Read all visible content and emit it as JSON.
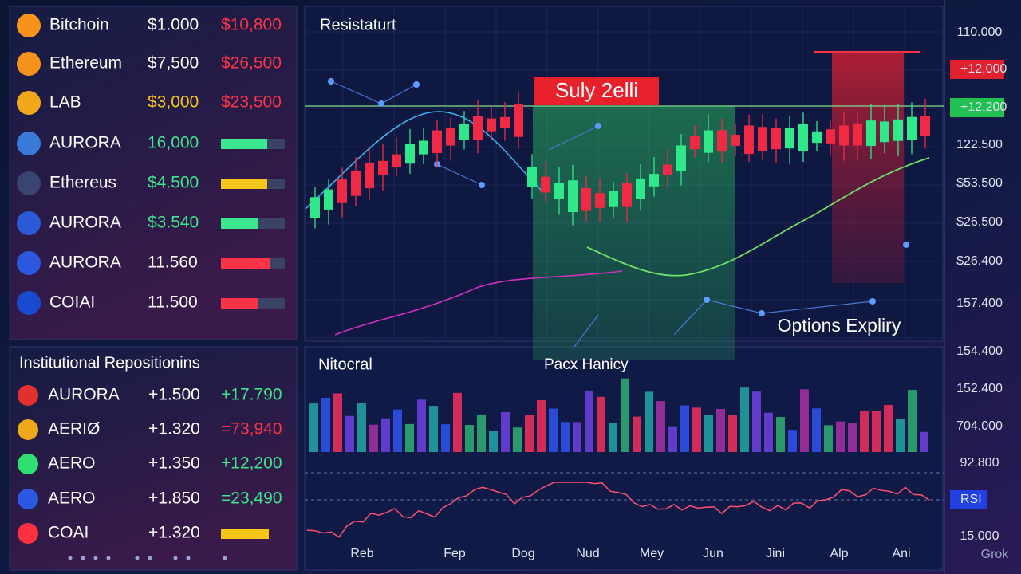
{
  "assets": [
    {
      "name": "Bitchoin",
      "price": "$1.000",
      "change": "$10,800"
    },
    {
      "name": "Ethereum",
      "price": "$7,500",
      "change": "$26,500"
    },
    {
      "name": "LAB",
      "price": "$3,000",
      "change": "$23,500"
    },
    {
      "name": "AURORA",
      "price": "16,000"
    },
    {
      "name": "Ethereus",
      "price": "$4.500"
    },
    {
      "name": "AURORA",
      "price": "$3.540"
    },
    {
      "name": "AURORA",
      "price": "11.560"
    },
    {
      "name": "COIAI",
      "price": "11.500"
    }
  ],
  "institutional": {
    "title": "Institutional Repositionins",
    "rows": [
      {
        "name": "AURORA",
        "amount": "+1.500",
        "change": "+17.790"
      },
      {
        "name": "AERIØ",
        "amount": "+1.320",
        "change": "=73,940"
      },
      {
        "name": "AERO",
        "amount": "+1.350",
        "change": "+12,200"
      },
      {
        "name": "AERO",
        "amount": "+1.850",
        "change": "=23,490"
      },
      {
        "name": "COAI",
        "amount": "+1.320"
      }
    ]
  },
  "main_chart": {
    "title": "Resistaturt",
    "zone_label": "Suly 2elli",
    "annotation": "Options Expliry"
  },
  "volume_panel": {
    "title": "Nitocral",
    "subtitle": "Pacx Hanicy"
  },
  "right_axis": [
    "110.000",
    "+12,000",
    "+12,200",
    "122.500",
    "$53.500",
    "$26.500",
    "$26.400",
    "157.400",
    "154.400",
    "152.400",
    "704.000",
    "92.800",
    "RSI",
    "15.000"
  ],
  "x_labels": [
    "Reb",
    "Fep",
    "Dog",
    "Nud",
    "Mey",
    "Jun",
    "Jini",
    "Alp",
    "Ani"
  ],
  "watermark": "Grok"
}
